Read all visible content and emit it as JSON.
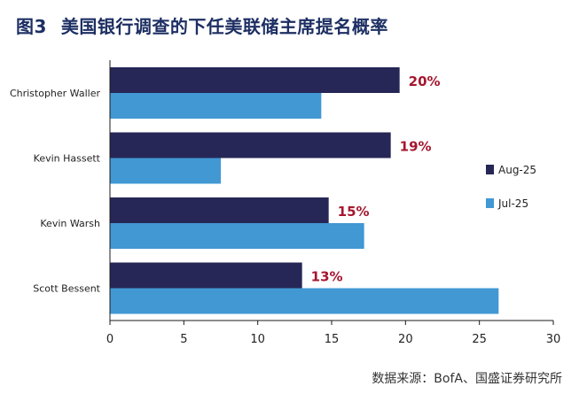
{
  "figure_label": "图3",
  "title": "美国银行调查的下任美联储主席提名概率",
  "source": "数据来源：BofA、国盛证券研究所",
  "colors": {
    "aug": "#262756",
    "jul": "#4198d3",
    "value_label": "#a5172f",
    "axis": "#1a1a1a",
    "title": "#1d2f63"
  },
  "chart_data": {
    "type": "bar",
    "orientation": "horizontal",
    "categories": [
      "Christopher Waller",
      "Kevin Hassett",
      "Kevin Warsh",
      "Scott Bessent"
    ],
    "series": [
      {
        "name": "Aug-25",
        "values": [
          19.6,
          19.0,
          14.8,
          13.0
        ],
        "labels": [
          "20%",
          "19%",
          "15%",
          "13%"
        ]
      },
      {
        "name": "Jul-25",
        "values": [
          14.3,
          7.5,
          17.2,
          26.3
        ]
      }
    ],
    "xlim": [
      0,
      30
    ],
    "xticks": [
      "0",
      "5",
      "10",
      "15",
      "20",
      "25",
      "30"
    ],
    "grid": false,
    "legend_position": "right"
  }
}
